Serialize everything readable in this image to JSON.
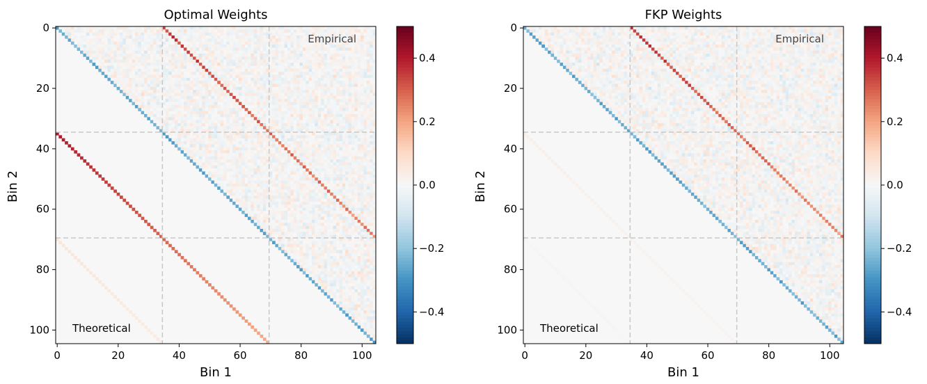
{
  "chart_data": [
    {
      "type": "heatmap",
      "title": "Optimal Weights",
      "xlabel": "Bin 1",
      "ylabel": "Bin 2",
      "n_bins": 105,
      "block_boundaries": [
        35,
        70
      ],
      "xticks": [
        0,
        20,
        40,
        60,
        80,
        100
      ],
      "yticks": [
        0,
        20,
        40,
        60,
        80,
        100
      ],
      "xlim": [
        0,
        105
      ],
      "ylim": [
        105,
        0
      ],
      "color_range": [
        -0.5,
        0.5
      ],
      "colormap": "RdBu_r",
      "colorbar_ticks": [
        0.4,
        0.2,
        0.0,
        -0.2,
        -0.4
      ],
      "colorbar_labels": [
        "0.4",
        "0.2",
        "0.0",
        "−0.2",
        "−0.4"
      ],
      "annotations": {
        "upper": "Empirical",
        "lower": "Theoretical"
      },
      "empirical": {
        "main_diagonal": -0.25,
        "cross_block_diagonal": 0.35,
        "noise": 0.1
      },
      "theoretical": {
        "main_diagonal": 0.0,
        "first_off_block_diagonal": 0.4,
        "second_off_block_diagonal": 0.06
      }
    },
    {
      "type": "heatmap",
      "title": "FKP Weights",
      "xlabel": "Bin 1",
      "ylabel": "Bin 2",
      "n_bins": 105,
      "block_boundaries": [
        35,
        70
      ],
      "xticks": [
        0,
        20,
        40,
        60,
        80,
        100
      ],
      "yticks": [
        0,
        20,
        40,
        60,
        80,
        100
      ],
      "xlim": [
        0,
        105
      ],
      "ylim": [
        105,
        0
      ],
      "color_range": [
        -0.5,
        0.5
      ],
      "colormap": "RdBu_r",
      "colorbar_ticks": [
        0.4,
        0.2,
        0.0,
        -0.2,
        -0.4
      ],
      "colorbar_labels": [
        "0.4",
        "0.2",
        "0.0",
        "−0.2",
        "−0.4"
      ],
      "annotations": {
        "upper": "Empirical",
        "lower": "Theoretical"
      },
      "empirical": {
        "main_diagonal": -0.25,
        "cross_block_diagonal": 0.35,
        "noise": 0.1
      },
      "theoretical": {
        "main_diagonal": 0.0,
        "first_off_block_diagonal": 0.03,
        "second_off_block_diagonal": -0.01
      }
    }
  ]
}
